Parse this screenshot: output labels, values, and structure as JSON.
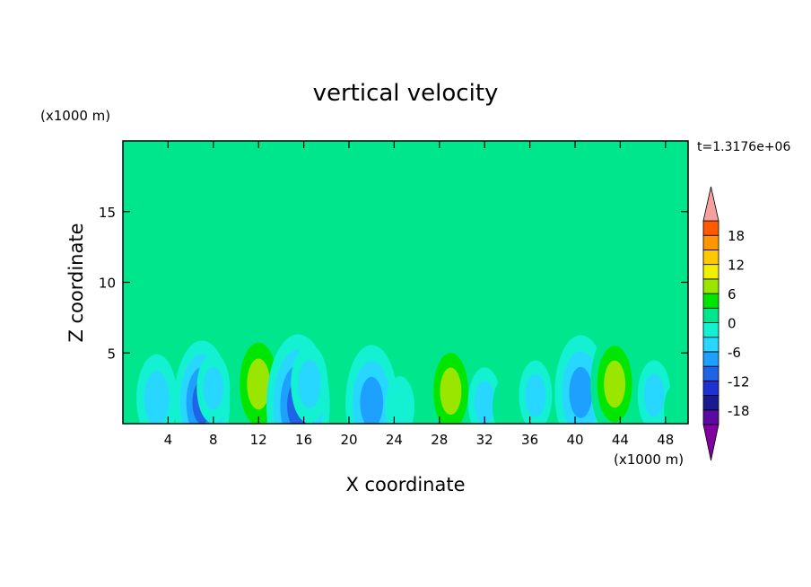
{
  "chart_data": {
    "type": "heatmap",
    "title": "vertical velocity",
    "xlabel": "X coordinate",
    "ylabel": "Z coordinate",
    "x_unit": "(x1000 m)",
    "z_unit": "(x1000 m)",
    "time_label": "t=1.3176e+06",
    "xlim": [
      0,
      50
    ],
    "zlim": [
      0,
      20
    ],
    "x_ticks": [
      4,
      8,
      12,
      16,
      20,
      24,
      28,
      32,
      36,
      40,
      44,
      48
    ],
    "z_ticks": [
      5,
      10,
      15
    ],
    "colorbar": {
      "levels": [
        -21,
        -18,
        -15,
        -12,
        -9,
        -6,
        -3,
        0,
        3,
        6,
        9,
        12,
        15,
        18,
        21
      ],
      "labels": [
        18,
        12,
        6,
        0,
        -6,
        -12,
        -18
      ],
      "colors": [
        "#5a0aa0",
        "#1a1a90",
        "#1e32d2",
        "#1e64e6",
        "#1ea0ff",
        "#28d7ff",
        "#14f0d2",
        "#00e68c",
        "#00e600",
        "#9be600",
        "#f0f000",
        "#ffc800",
        "#ff9600",
        "#ff5a00",
        "#eb2828"
      ],
      "low_extend_color": "#8200a0",
      "high_extend_color": "#f4a0a0"
    },
    "background_level": 0,
    "features": [
      {
        "x": 3,
        "z": 1.8,
        "value": -7
      },
      {
        "x": 7,
        "z": 1.5,
        "value": -11
      },
      {
        "x": 8,
        "z": 2.5,
        "value": -5
      },
      {
        "x": 12,
        "z": 2.8,
        "value": 10
      },
      {
        "x": 15.5,
        "z": 1.3,
        "value": -13
      },
      {
        "x": 16.5,
        "z": 2.8,
        "value": -6
      },
      {
        "x": 20,
        "z": 1.2,
        "value": 3
      },
      {
        "x": 22,
        "z": 1.5,
        "value": -10
      },
      {
        "x": 24.5,
        "z": 1.2,
        "value": -4
      },
      {
        "x": 29,
        "z": 2.3,
        "value": 9
      },
      {
        "x": 32,
        "z": 1.5,
        "value": -5
      },
      {
        "x": 34,
        "z": 1.2,
        "value": 4
      },
      {
        "x": 36.5,
        "z": 2.0,
        "value": -5
      },
      {
        "x": 40.5,
        "z": 2.2,
        "value": -10
      },
      {
        "x": 43.5,
        "z": 2.8,
        "value": 9
      },
      {
        "x": 47,
        "z": 2.0,
        "value": -5
      },
      {
        "x": 49,
        "z": 1.0,
        "value": 3
      }
    ],
    "upper_regions": [
      {
        "x": 3,
        "z": 17.5,
        "value": 1.5
      },
      {
        "x": 10,
        "z": 19,
        "value": 1.5
      },
      {
        "x": 19,
        "z": 15.5,
        "value": 1.5
      },
      {
        "x": 26,
        "z": 19,
        "value": 1.5
      },
      {
        "x": 29,
        "z": 11,
        "value": 1.5
      },
      {
        "x": 33,
        "z": 17,
        "value": 1.5
      },
      {
        "x": 42,
        "z": 16,
        "value": 1.5
      },
      {
        "x": 46,
        "z": 10,
        "value": 1.5
      },
      {
        "x": 48,
        "z": 19,
        "value": 1.5
      }
    ]
  }
}
